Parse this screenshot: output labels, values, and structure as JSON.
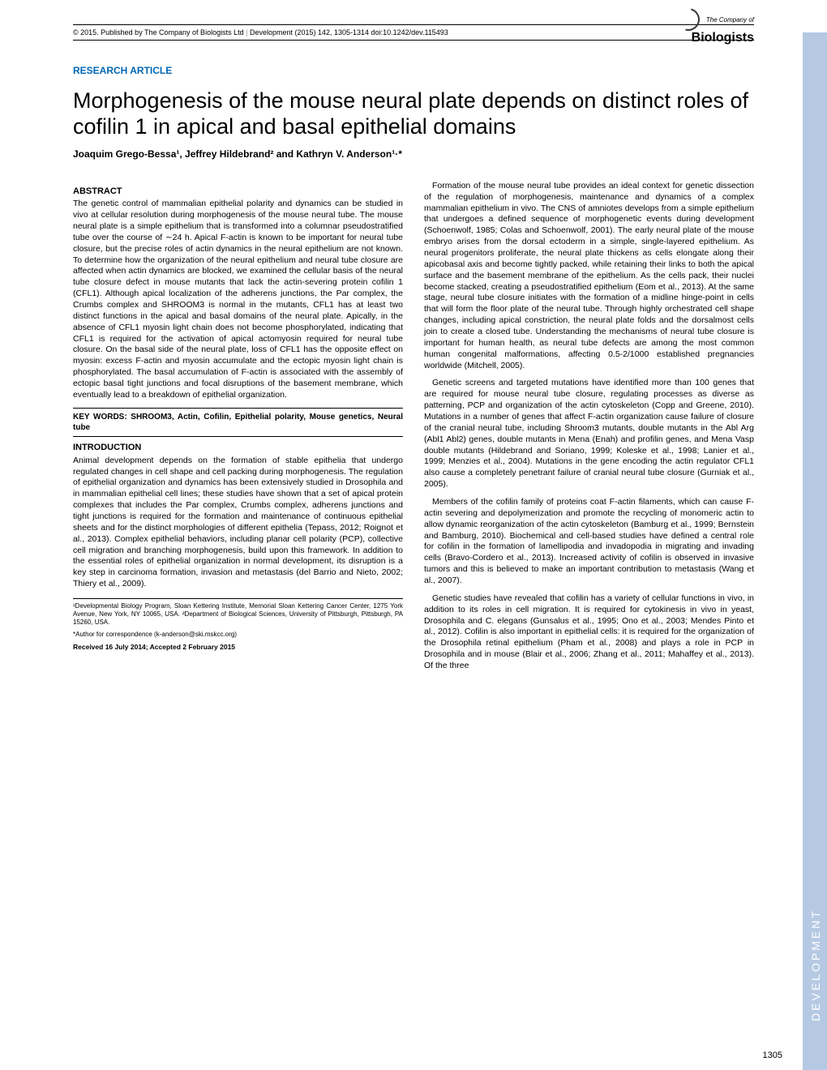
{
  "header": {
    "copyright": "© 2015. Published by The Company of Biologists Ltd",
    "journal_ref": "Development (2015) 142, 1305-1314 doi:10.1242/dev.115493",
    "logo_small": "The Company of",
    "logo_big": "Biologists"
  },
  "article_type": "RESEARCH ARTICLE",
  "title": "Morphogenesis of the mouse neural plate depends on distinct roles of cofilin 1 in apical and basal epithelial domains",
  "authors": "Joaquim Grego-Bessa¹, Jeffrey Hildebrand² and Kathryn V. Anderson¹·*",
  "sections": {
    "abstract_head": "ABSTRACT",
    "abstract": "The genetic control of mammalian epithelial polarity and dynamics can be studied in vivo at cellular resolution during morphogenesis of the mouse neural tube. The mouse neural plate is a simple epithelium that is transformed into a columnar pseudostratified tube over the course of ∼24 h. Apical F-actin is known to be important for neural tube closure, but the precise roles of actin dynamics in the neural epithelium are not known. To determine how the organization of the neural epithelium and neural tube closure are affected when actin dynamics are blocked, we examined the cellular basis of the neural tube closure defect in mouse mutants that lack the actin-severing protein cofilin 1 (CFL1). Although apical localization of the adherens junctions, the Par complex, the Crumbs complex and SHROOM3 is normal in the mutants, CFL1 has at least two distinct functions in the apical and basal domains of the neural plate. Apically, in the absence of CFL1 myosin light chain does not become phosphorylated, indicating that CFL1 is required for the activation of apical actomyosin required for neural tube closure. On the basal side of the neural plate, loss of CFL1 has the opposite effect on myosin: excess F-actin and myosin accumulate and the ectopic myosin light chain is phosphorylated. The basal accumulation of F-actin is associated with the assembly of ectopic basal tight junctions and focal disruptions of the basement membrane, which eventually lead to a breakdown of epithelial organization.",
    "keywords": "KEY WORDS: SHROOM3, Actin, Cofilin, Epithelial polarity, Mouse genetics, Neural tube",
    "intro_head": "INTRODUCTION",
    "intro_p1": "Animal development depends on the formation of stable epithelia that undergo regulated changes in cell shape and cell packing during morphogenesis. The regulation of epithelial organization and dynamics has been extensively studied in Drosophila and in mammalian epithelial cell lines; these studies have shown that a set of apical protein complexes that includes the Par complex, Crumbs complex, adherens junctions and tight junctions is required for the formation and maintenance of continuous epithelial sheets and for the distinct morphologies of different epithelia (Tepass, 2012; Roignot et al., 2013). Complex epithelial behaviors, including planar cell polarity (PCP), collective cell migration and branching morphogenesis, build upon this framework. In addition to the essential roles of epithelial organization in normal development, its disruption is a key step in carcinoma formation, invasion and metastasis (del Barrio and Nieto, 2002; Thiery et al., 2009).",
    "col2_p1": "Formation of the mouse neural tube provides an ideal context for genetic dissection of the regulation of morphogenesis, maintenance and dynamics of a complex mammalian epithelium in vivo. The CNS of amniotes develops from a simple epithelium that undergoes a defined sequence of morphogenetic events during development (Schoenwolf, 1985; Colas and Schoenwolf, 2001). The early neural plate of the mouse embryo arises from the dorsal ectoderm in a simple, single-layered epithelium. As neural progenitors proliferate, the neural plate thickens as cells elongate along their apicobasal axis and become tightly packed, while retaining their links to both the apical surface and the basement membrane of the epithelium. As the cells pack, their nuclei become stacked, creating a pseudostratified epithelium (Eom et al., 2013). At the same stage, neural tube closure initiates with the formation of a midline hinge-point in cells that will form the floor plate of the neural tube. Through highly orchestrated cell shape changes, including apical constriction, the neural plate folds and the dorsalmost cells join to create a closed tube. Understanding the mechanisms of neural tube closure is important for human health, as neural tube defects are among the most common human congenital malformations, affecting 0.5-2/1000 established pregnancies worldwide (Mitchell, 2005).",
    "col2_p2": "Genetic screens and targeted mutations have identified more than 100 genes that are required for mouse neural tube closure, regulating processes as diverse as patterning, PCP and organization of the actin cytoskeleton (Copp and Greene, 2010). Mutations in a number of genes that affect F-actin organization cause failure of closure of the cranial neural tube, including Shroom3 mutants, double mutants in the Abl Arg (Abl1 Abl2) genes, double mutants in Mena (Enah) and profilin genes, and Mena Vasp double mutants (Hildebrand and Soriano, 1999; Koleske et al., 1998; Lanier et al., 1999; Menzies et al., 2004). Mutations in the gene encoding the actin regulator CFL1 also cause a completely penetrant failure of cranial neural tube closure (Gurniak et al., 2005).",
    "col2_p3": "Members of the cofilin family of proteins coat F-actin filaments, which can cause F-actin severing and depolymerization and promote the recycling of monomeric actin to allow dynamic reorganization of the actin cytoskeleton (Bamburg et al., 1999; Bernstein and Bamburg, 2010). Biochemical and cell-based studies have defined a central role for cofilin in the formation of lamellipodia and invadopodia in migrating and invading cells (Bravo-Cordero et al., 2013). Increased activity of cofilin is observed in invasive tumors and this is believed to make an important contribution to metastasis (Wang et al., 2007).",
    "col2_p4": "Genetic studies have revealed that cofilin has a variety of cellular functions in vivo, in addition to its roles in cell migration. It is required for cytokinesis in vivo in yeast, Drosophila and C. elegans (Gunsalus et al., 1995; Ono et al., 2003; Mendes Pinto et al., 2012). Cofilin is also important in epithelial cells: it is required for the organization of the Drosophila retinal epithelium (Pham et al., 2008) and plays a role in PCP in Drosophila and in mouse (Blair et al., 2006; Zhang et al., 2011; Mahaffey et al., 2013). Of the three"
  },
  "footer": {
    "affil1": "¹Developmental Biology Program, Sloan Kettering Institute, Memorial Sloan Kettering Cancer Center, 1275 York Avenue, New York, NY 10065, USA. ²Department of Biological Sciences, University of Pittsburgh, Pittsburgh, PA 15260, USA.",
    "corresp": "*Author for correspondence (k-anderson@ski.mskcc.org)",
    "received": "Received 16 July 2014; Accepted 2 February 2015"
  },
  "side_label": "DEVELOPMENT",
  "page_number": "1305",
  "colors": {
    "accent": "#0066b3",
    "side_tab": "#b5c9e3",
    "side_text": "#ffffff"
  }
}
